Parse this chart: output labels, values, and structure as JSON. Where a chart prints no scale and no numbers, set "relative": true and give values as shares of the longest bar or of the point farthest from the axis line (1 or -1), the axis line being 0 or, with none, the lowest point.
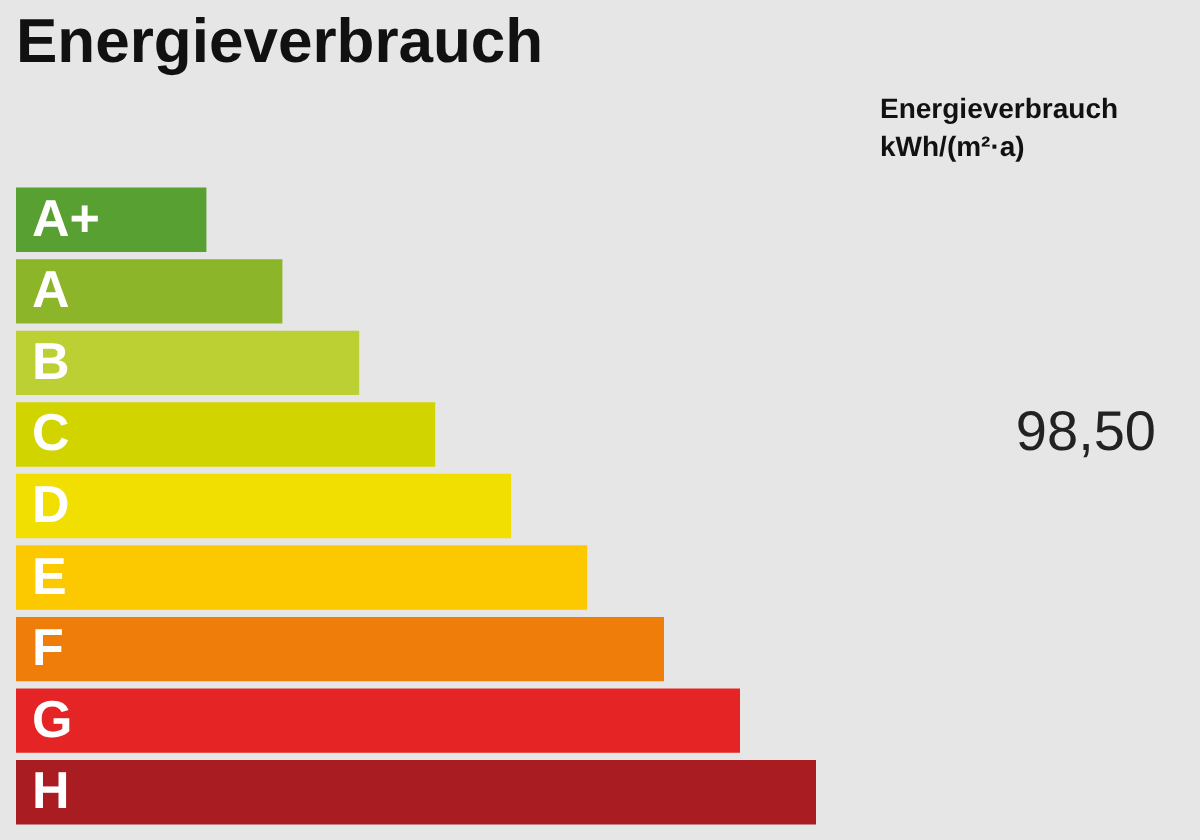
{
  "chart_data": {
    "type": "bar",
    "orientation": "horizontal",
    "relative": true,
    "title": "Energieverbrauch",
    "categories": [
      "A+",
      "A",
      "B",
      "C",
      "D",
      "E",
      "F",
      "G",
      "H"
    ],
    "values": [
      0.238,
      0.333,
      0.429,
      0.524,
      0.619,
      0.714,
      0.81,
      0.905,
      1.0
    ],
    "colors": [
      "#58a032",
      "#8cb52a",
      "#bdd033",
      "#d2d400",
      "#f0df00",
      "#fcc800",
      "#ef7d0a",
      "#e52525",
      "#a81c22"
    ],
    "annotations": [
      "Energieverbrauch\nkWh/(m²·a)",
      "98,50"
    ]
  }
}
